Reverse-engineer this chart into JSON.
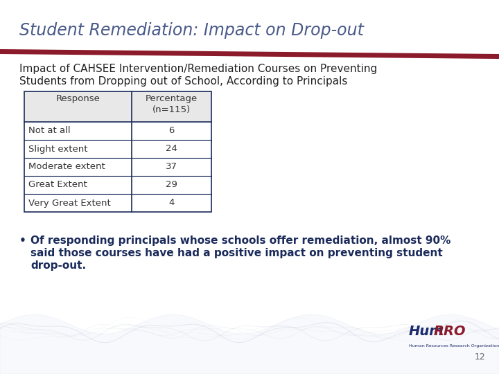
{
  "title": "Student Remediation: Impact on Drop-out",
  "subtitle_line1": "Impact of CAHSEE Intervention/Remediation Courses on Preventing",
  "subtitle_line2": "Students from Dropping out of School, According to Principals",
  "table_header_col1": "Response",
  "table_header_col2": "Percentage\n(n=115)",
  "table_rows": [
    [
      "Not at all",
      "6"
    ],
    [
      "Slight extent",
      "24"
    ],
    [
      "Moderate extent",
      "37"
    ],
    [
      "Great Extent",
      "29"
    ],
    [
      "Very Great Extent",
      "4"
    ]
  ],
  "bullet_line1": "Of responding principals whose schools offer remediation, almost 90%",
  "bullet_line2": "said those courses have had a positive impact on preventing student",
  "bullet_line3": "drop-out.",
  "page_number": "12",
  "title_color": "#4a5a8a",
  "divider_color": "#8b1a2a",
  "table_border_color": "#1a2a5a",
  "subtitle_color": "#222222",
  "bullet_color": "#1a2a5a",
  "bg_color": "#ffffff",
  "page_num_color": "#666666",
  "wave_color": "#9aaabf"
}
